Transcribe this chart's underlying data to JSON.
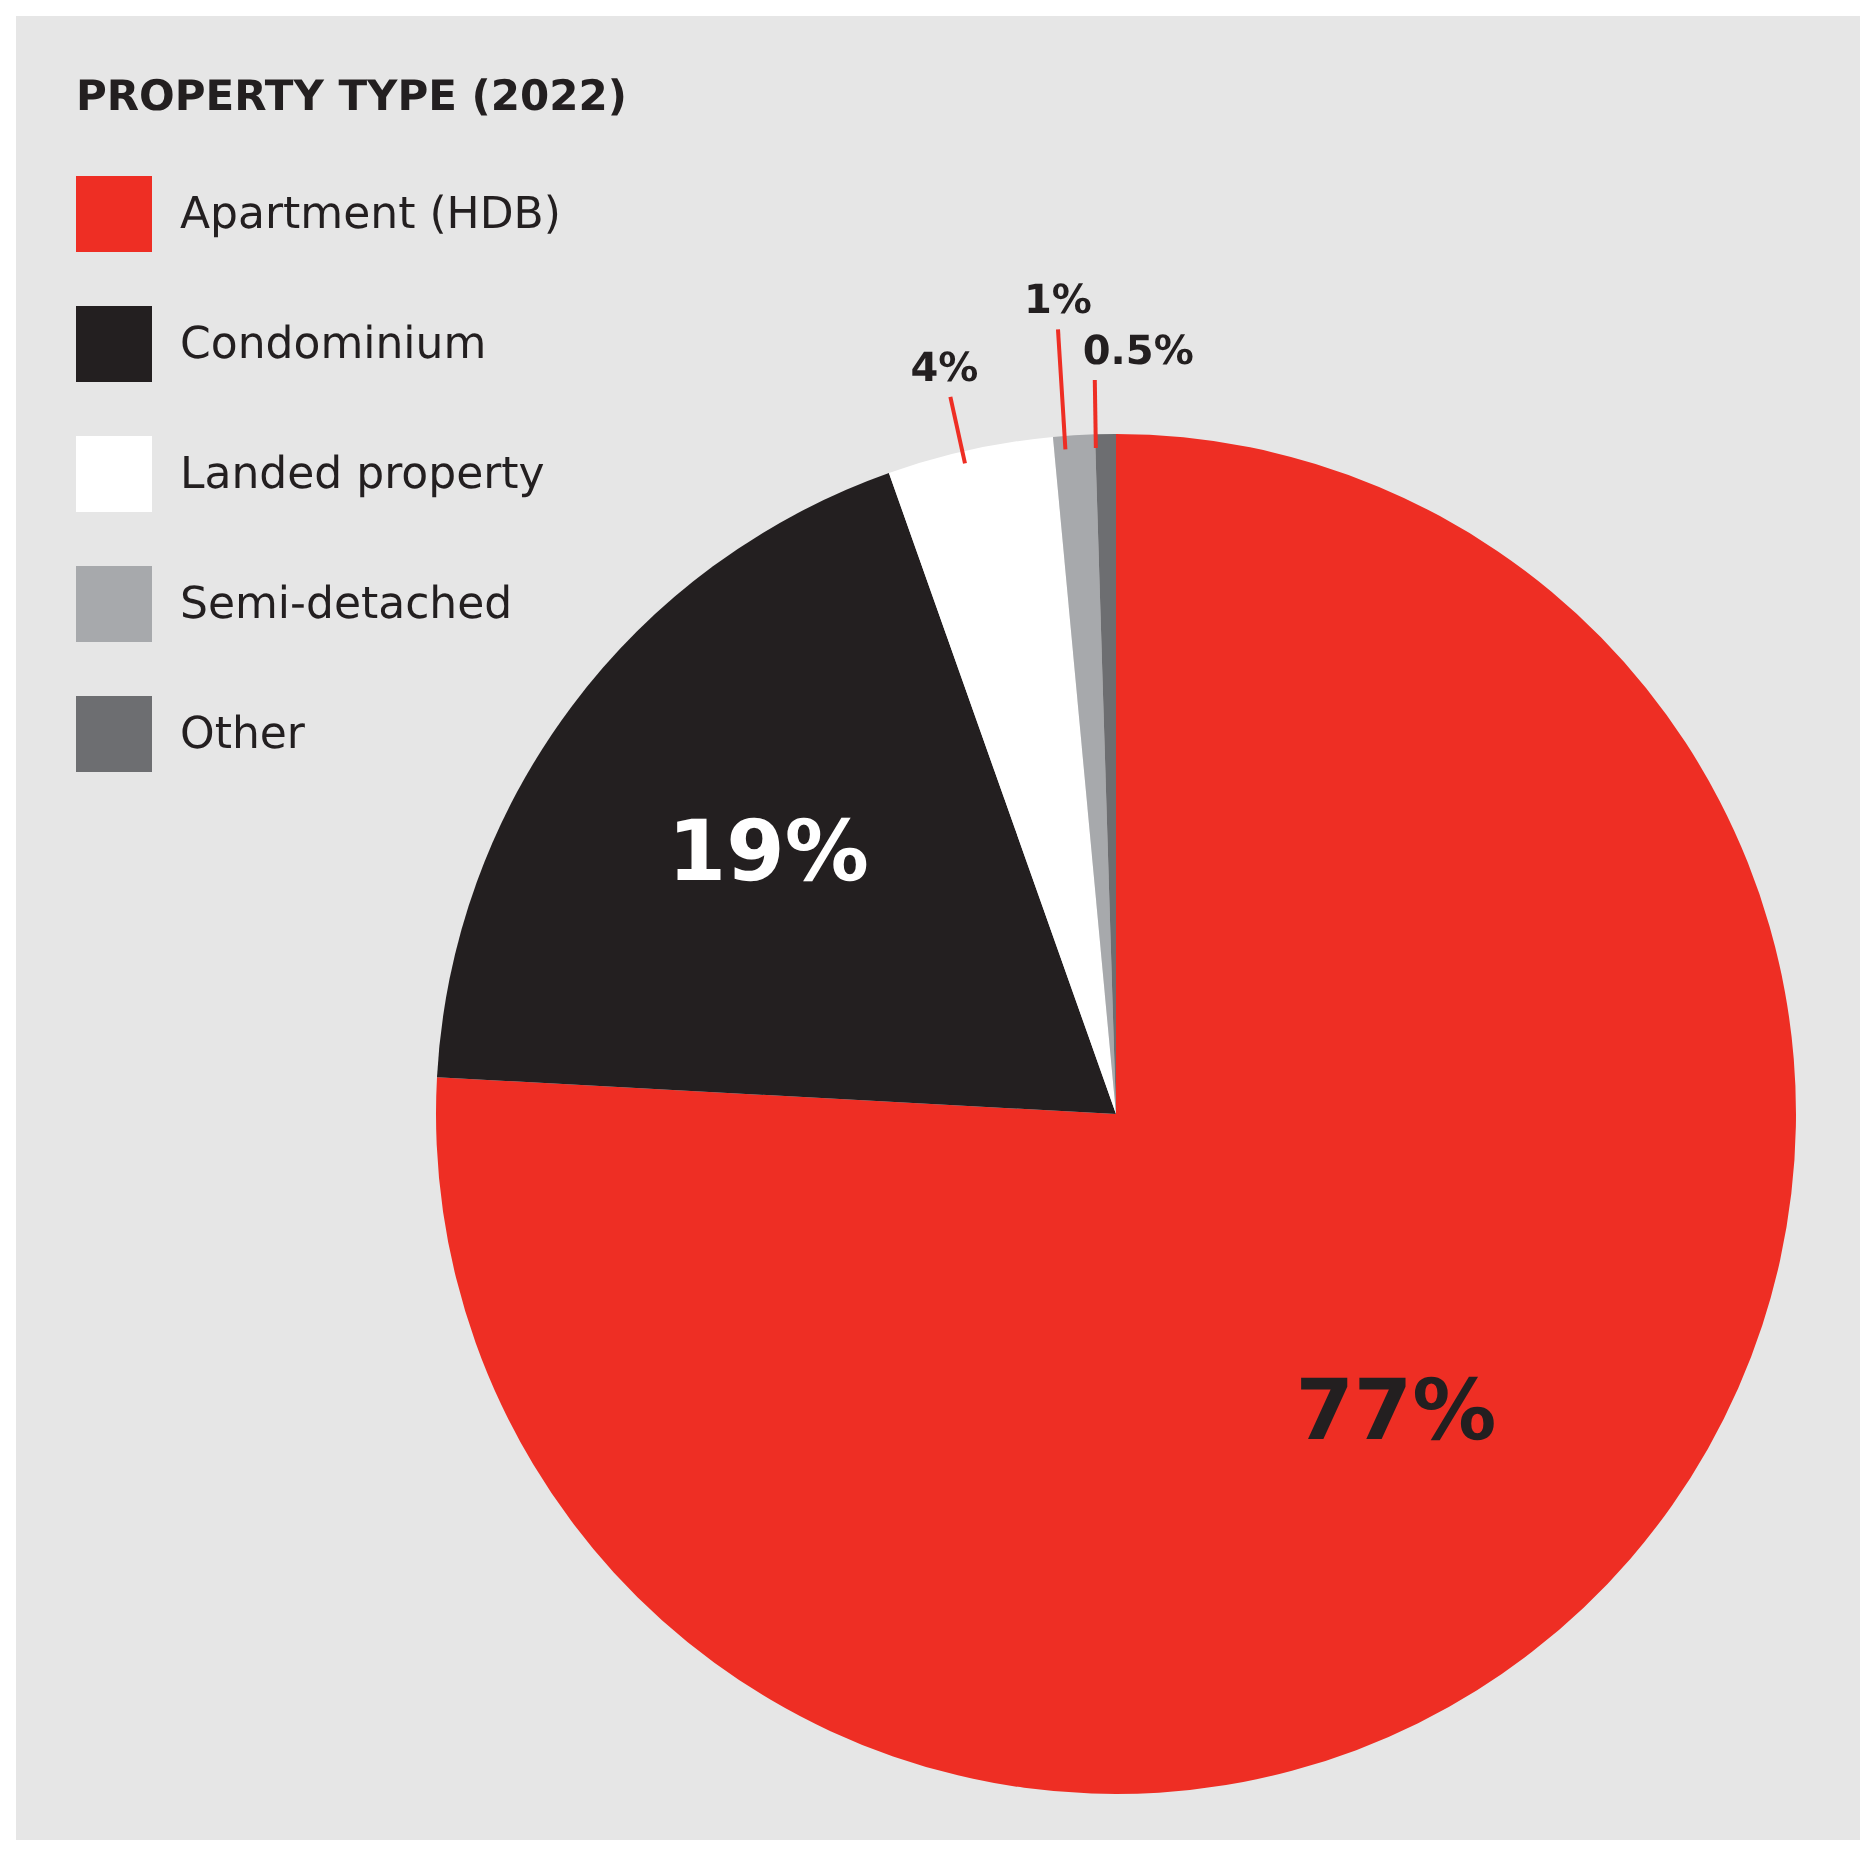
{
  "chart_data": {
    "type": "pie",
    "title": "PROPERTY TYPE (2022)",
    "categories": [
      "Apartment (HDB)",
      "Condominium",
      "Landed property",
      "Semi-detached",
      "Other"
    ],
    "values": [
      77,
      19,
      4,
      1,
      0.5
    ],
    "colors": [
      "#ee2e24",
      "#231f20",
      "#ffffff",
      "#a7a9ac",
      "#6d6e71"
    ],
    "value_labels": [
      "77%",
      "19%",
      "4%",
      "1%",
      "0.5%"
    ],
    "legend": "top left"
  }
}
